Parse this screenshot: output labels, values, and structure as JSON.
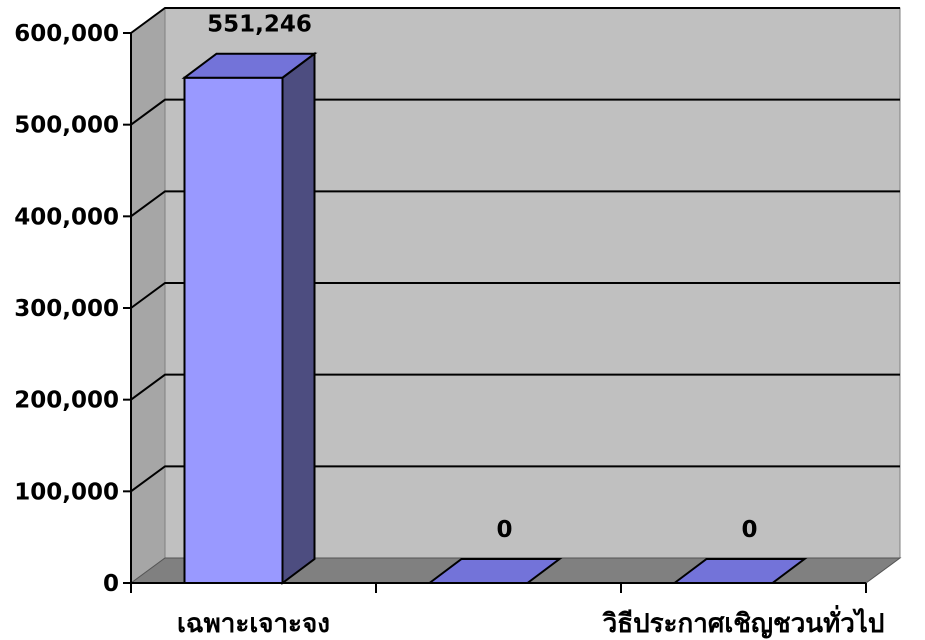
{
  "chart_data": {
    "type": "bar",
    "style": "3d-column",
    "categories": [
      "เฉพาะเจาะจง",
      "",
      "วิธีประกาศเชิญชวนทั่วไป"
    ],
    "values": [
      551246,
      0,
      0
    ],
    "data_labels": [
      "551,246",
      "0",
      "0"
    ],
    "y_ticks": [
      "0",
      "100,000",
      "200,000",
      "300,000",
      "400,000",
      "500,000",
      "600,000"
    ],
    "ylim": [
      0,
      600000
    ],
    "grid": true,
    "legend": "none",
    "title": "",
    "xlabel": "",
    "ylabel": "",
    "colors": {
      "bar_front": "#9999ff",
      "bar_top": "#7373d9",
      "bar_side": "#4d4d80",
      "back_wall": "#c0c0c0",
      "side_wall": "#a6a6a6",
      "floor": "#808080",
      "gridline": "#000000"
    }
  }
}
